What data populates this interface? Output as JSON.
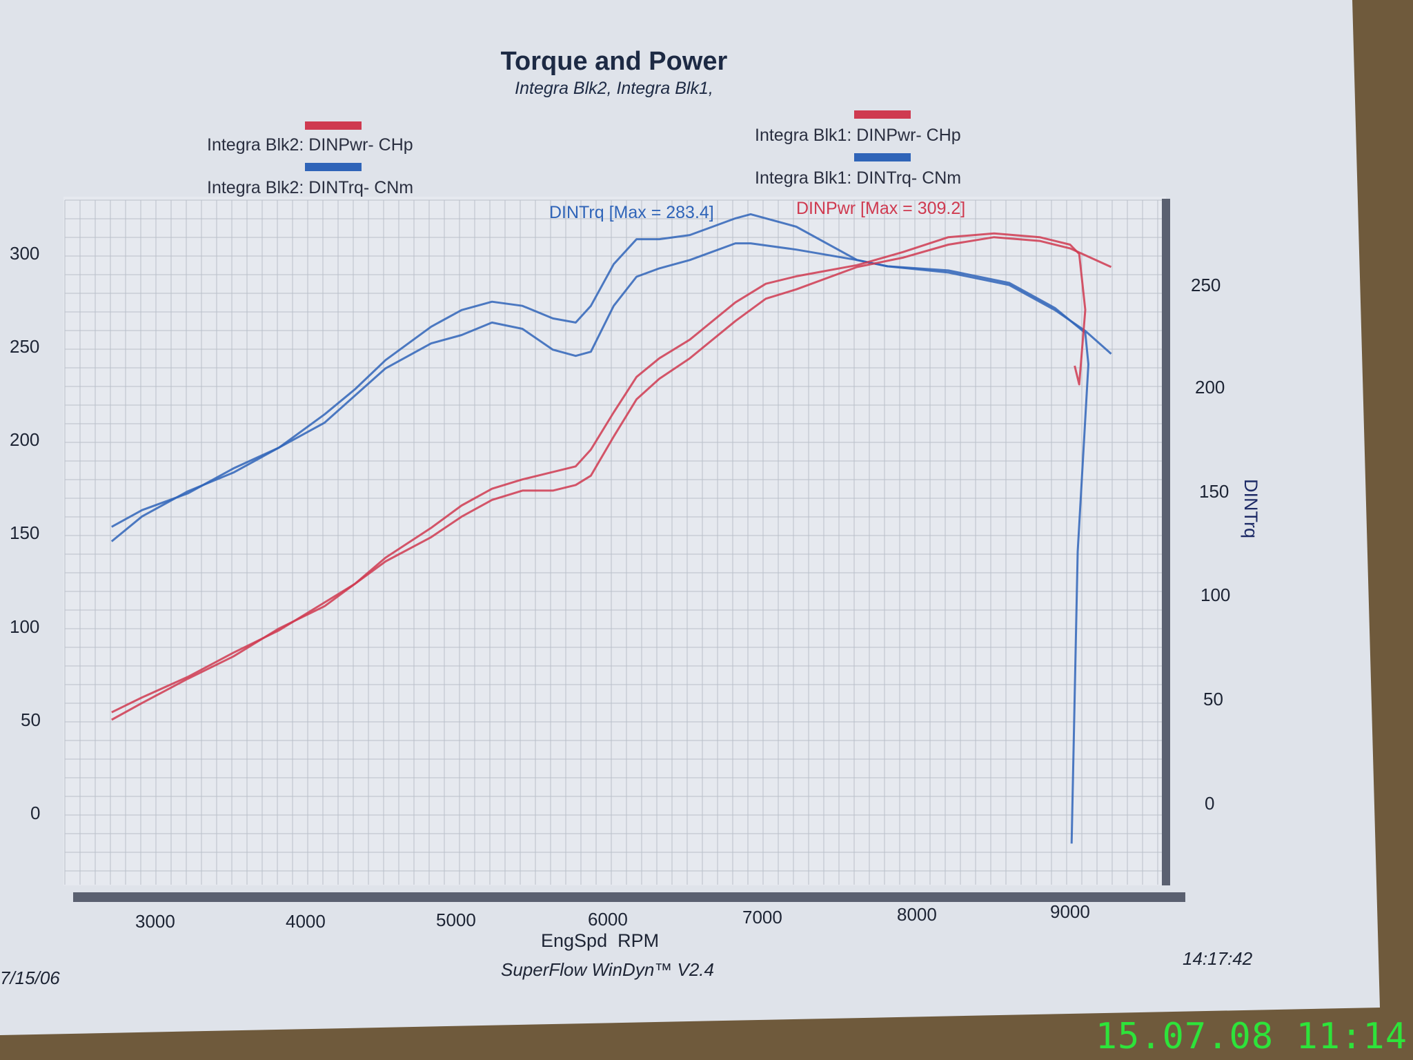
{
  "chart_data": {
    "type": "line",
    "title": "Torque and Power",
    "subtitle": "Integra Blk2, Integra Blk1,",
    "xlabel": "EngSpd  RPM",
    "ylabel_right": "DINTrq",
    "xlim": [
      2500,
      9700
    ],
    "ylim_left": [
      -50,
      320
    ],
    "ylim_right": [
      -50,
      275
    ],
    "x_ticks": [
      3000,
      4000,
      5000,
      6000,
      7000,
      8000,
      9000
    ],
    "y_ticks_left": [
      0,
      50,
      100,
      150,
      200,
      250,
      300
    ],
    "y_ticks_right": [
      0,
      50,
      100,
      150,
      200,
      250
    ],
    "grid": true,
    "legend_placement": "top",
    "legend": [
      {
        "label": "Integra Blk2: DINPwr- CHp",
        "color": "#cf3a50"
      },
      {
        "label": "Integra Blk2: DINTrq- CNm",
        "color": "#2f64b8"
      },
      {
        "label": "Integra Blk1: DINPwr- CHp",
        "color": "#cf3a50"
      },
      {
        "label": "Integra Blk1: DINTrq- CNm",
        "color": "#2f64b8"
      }
    ],
    "annotations": {
      "torque_max": "DINTrq [Max = 283.4]",
      "power_max": "DINPwr [Max = 309.2]"
    },
    "series": [
      {
        "name": "Integra Blk2: DINTrq- CNm",
        "axis": "right",
        "color": "#2f64b8",
        "x": [
          2700,
          2900,
          3200,
          3500,
          3800,
          4100,
          4300,
          4500,
          4800,
          5000,
          5200,
          5400,
          5600,
          5750,
          5850,
          6000,
          6150,
          6300,
          6500,
          6800,
          6900,
          7200,
          7600,
          7800,
          8200,
          8600,
          8900,
          9100,
          9120,
          9050,
          9010
        ],
        "y": [
          132,
          140,
          148,
          160,
          170,
          186,
          198,
          212,
          228,
          236,
          240,
          238,
          232,
          230,
          238,
          258,
          270,
          270,
          272,
          280,
          282,
          276,
          260,
          257,
          255,
          249,
          237,
          225,
          210,
          120,
          -20
        ]
      },
      {
        "name": "Integra Blk1: DINTrq- CNm",
        "axis": "right",
        "color": "#2f64b8",
        "x": [
          2700,
          2900,
          3200,
          3500,
          3800,
          4100,
          4300,
          4500,
          4800,
          5000,
          5200,
          5400,
          5600,
          5750,
          5850,
          6000,
          6150,
          6300,
          6500,
          6800,
          6900,
          7200,
          7600,
          7800,
          8200,
          8600,
          8900,
          9100,
          9270
        ],
        "y": [
          125,
          137,
          149,
          158,
          170,
          182,
          195,
          208,
          220,
          224,
          230,
          227,
          217,
          214,
          216,
          238,
          252,
          256,
          260,
          268,
          268,
          265,
          260,
          257,
          254,
          248,
          236,
          226,
          215
        ]
      },
      {
        "name": "Integra Blk2: DINPwr- CHp",
        "axis": "left",
        "color": "#cf3a50",
        "x": [
          2700,
          2900,
          3200,
          3500,
          3800,
          4100,
          4300,
          4500,
          4800,
          5000,
          5200,
          5400,
          5600,
          5750,
          5850,
          6000,
          6150,
          6300,
          6500,
          6800,
          7000,
          7200,
          7600,
          7900,
          8200,
          8500,
          8800,
          9000,
          9060,
          9100,
          9060,
          9030
        ],
        "y": [
          54,
          62,
          73,
          86,
          98,
          113,
          123,
          137,
          153,
          165,
          174,
          179,
          183,
          186,
          195,
          215,
          234,
          244,
          254,
          274,
          284,
          288,
          294,
          301,
          309,
          311,
          309,
          305,
          300,
          270,
          230,
          240
        ]
      },
      {
        "name": "Integra Blk1: DINPwr- CHp",
        "axis": "left",
        "color": "#cf3a50",
        "x": [
          2700,
          2900,
          3200,
          3500,
          3800,
          4100,
          4300,
          4500,
          4800,
          5000,
          5200,
          5400,
          5600,
          5750,
          5850,
          6000,
          6150,
          6300,
          6500,
          6800,
          7000,
          7200,
          7600,
          7900,
          8200,
          8500,
          8800,
          9000,
          9270
        ],
        "y": [
          50,
          59,
          72,
          84,
          99,
          111,
          123,
          135,
          148,
          159,
          168,
          173,
          173,
          176,
          181,
          202,
          222,
          233,
          244,
          264,
          276,
          281,
          293,
          298,
          305,
          309,
          307,
          303,
          293
        ]
      }
    ]
  },
  "footer": {
    "left_date": "7/15/06",
    "center": "SuperFlow WinDyn™ V2.4",
    "right_time": "14:17:42"
  },
  "camera_stamp": "15.07.08 11:14"
}
